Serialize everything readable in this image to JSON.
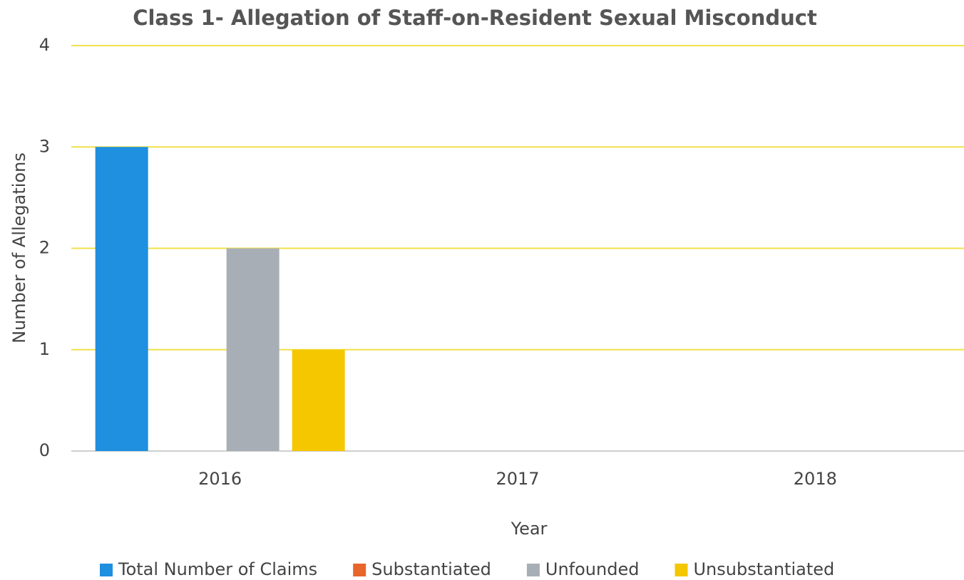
{
  "chart_data": {
    "type": "bar",
    "title": "Class 1- Allegation of Staff-on-Resident Sexual Misconduct",
    "x_label": "Year",
    "y_label": "Number of Allegations",
    "categories": [
      "2016",
      "2017",
      "2018"
    ],
    "series": [
      {
        "name": "Total Number of Claims",
        "color": "#1f8fe0",
        "values": [
          3,
          0,
          0
        ]
      },
      {
        "name": "Substantiated",
        "color": "#e8652b",
        "values": [
          0,
          0,
          0
        ]
      },
      {
        "name": "Unfounded",
        "color": "#a8aeb6",
        "values": [
          2,
          0,
          0
        ]
      },
      {
        "name": "Unsubstantiated",
        "color": "#f4c700",
        "values": [
          1,
          0,
          0
        ]
      }
    ],
    "ylim": [
      0,
      4
    ],
    "yticks": [
      0,
      1,
      2,
      3,
      4
    ],
    "grid": true,
    "legend": "bottom"
  }
}
